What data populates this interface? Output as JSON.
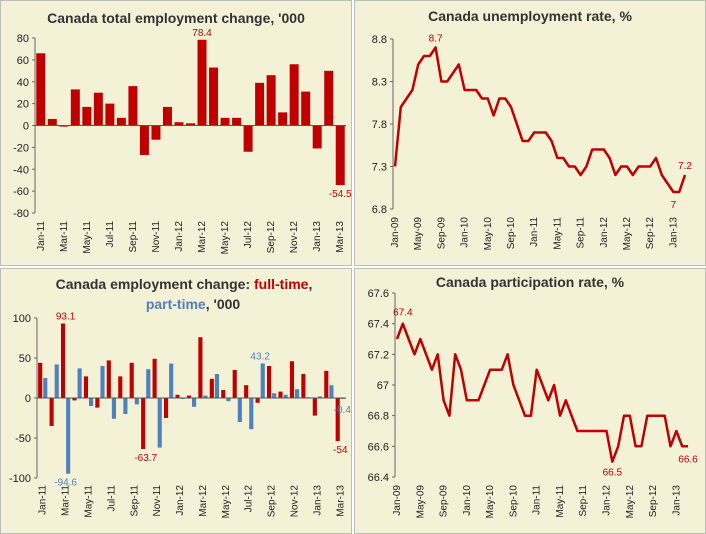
{
  "colors": {
    "red": "#c00000",
    "blue": "#4f81bd",
    "panel_bg": "#f3f1d6",
    "line_red": "#c00000"
  },
  "chart_data": [
    {
      "type": "bar",
      "title": "Canada total employment change, '000",
      "ylim": [
        -80,
        80
      ],
      "yticks": [
        80,
        60,
        40,
        20,
        0,
        -20,
        -40,
        -60,
        -80
      ],
      "x_tick_labels": [
        "Jan-11",
        "Mar-11",
        "May-11",
        "Jul-11",
        "Sep-11",
        "Nov-11",
        "Jan-12",
        "Mar-12",
        "May-12",
        "Jul-12",
        "Sep-12",
        "Nov-12",
        "Jan-13",
        "Mar-13"
      ],
      "categories": [
        "Jan-11",
        "Feb-11",
        "Mar-11",
        "Apr-11",
        "May-11",
        "Jun-11",
        "Jul-11",
        "Aug-11",
        "Sep-11",
        "Oct-11",
        "Nov-11",
        "Dec-11",
        "Jan-12",
        "Feb-12",
        "Mar-12",
        "Apr-12",
        "May-12",
        "Jun-12",
        "Jul-12",
        "Aug-12",
        "Sep-12",
        "Oct-12",
        "Nov-12",
        "Dec-12",
        "Jan-13",
        "Feb-13",
        "Mar-13"
      ],
      "values": [
        66,
        6,
        -1,
        33,
        17,
        30,
        20,
        7,
        36,
        -27,
        -13,
        17,
        3,
        2,
        78.4,
        53,
        7,
        7,
        -24,
        39,
        46,
        12,
        56,
        31,
        -21,
        50,
        -54.5
      ],
      "data_labels": [
        {
          "index": 14,
          "text": "78.4"
        },
        {
          "index": 26,
          "text": "-54.5"
        }
      ]
    },
    {
      "type": "line",
      "title": "Canada unemployment rate, %",
      "ylim": [
        6.8,
        8.8
      ],
      "yticks": [
        8.8,
        8.3,
        7.8,
        7.3,
        6.8
      ],
      "x_tick_labels": [
        "Jan-09",
        "May-09",
        "Sep-09",
        "Jan-10",
        "May-10",
        "Sep-10",
        "Jan-11",
        "May-11",
        "Sep-11",
        "Jan-12",
        "May-12",
        "Sep-12",
        "Jan-13"
      ],
      "values": [
        7.3,
        8.0,
        8.1,
        8.2,
        8.5,
        8.6,
        8.6,
        8.7,
        8.3,
        8.3,
        8.4,
        8.5,
        8.2,
        8.2,
        8.2,
        8.1,
        8.1,
        7.9,
        8.1,
        8.1,
        8.0,
        7.8,
        7.6,
        7.6,
        7.7,
        7.7,
        7.7,
        7.6,
        7.4,
        7.4,
        7.3,
        7.3,
        7.2,
        7.3,
        7.5,
        7.5,
        7.5,
        7.4,
        7.2,
        7.3,
        7.3,
        7.2,
        7.3,
        7.3,
        7.3,
        7.4,
        7.2,
        7.1,
        7.0,
        7.0,
        7.2
      ],
      "data_labels": [
        {
          "index": 7,
          "text": "8.7"
        },
        {
          "index": 48,
          "text": "7"
        },
        {
          "index": 50,
          "text": "7.2"
        }
      ]
    },
    {
      "type": "bar",
      "title_parts": [
        "Canada employment change: ",
        "full-time",
        ",",
        "part-time",
        ", '000"
      ],
      "ylim": [
        -100,
        100
      ],
      "yticks": [
        100,
        50,
        0,
        -50,
        -100
      ],
      "x_tick_labels": [
        "Jan-11",
        "Mar-11",
        "May-11",
        "Jul-11",
        "Sep-11",
        "Nov-11",
        "Jan-12",
        "Mar-12",
        "May-12",
        "Jul-12",
        "Sep-12",
        "Nov-12",
        "Jan-13",
        "Mar-13"
      ],
      "series": [
        {
          "name": "full-time",
          "values": [
            44,
            -35,
            93.1,
            -3,
            27,
            -12,
            47,
            27,
            44,
            -63.7,
            49,
            -25,
            4,
            3,
            76,
            24,
            10,
            35,
            16,
            -6,
            40,
            8,
            46,
            30,
            -22,
            34,
            -54
          ]
        },
        {
          "name": "part-time",
          "values": [
            25,
            42,
            -94.6,
            37,
            -10,
            40,
            -26,
            -20,
            -8,
            36,
            -62,
            43,
            -1,
            -11,
            3,
            30,
            -4,
            -30,
            -39,
            43.2,
            6,
            4,
            11,
            1,
            2,
            16,
            -0.4
          ]
        }
      ],
      "data_labels": [
        {
          "series": 0,
          "index": 2,
          "text": "93.1"
        },
        {
          "series": 1,
          "index": 2,
          "text": "-94.6"
        },
        {
          "series": 0,
          "index": 9,
          "text": "-63.7"
        },
        {
          "series": 1,
          "index": 19,
          "text": "43.2"
        },
        {
          "series": 1,
          "index": 26,
          "text": "-0.4"
        },
        {
          "series": 0,
          "index": 26,
          "text": "-54"
        }
      ]
    },
    {
      "type": "line",
      "title": "Canada participation rate, %",
      "ylim": [
        66.4,
        67.6
      ],
      "yticks": [
        67.6,
        67.4,
        67.2,
        67,
        66.8,
        66.6,
        66.4
      ],
      "y_tick_labels": [
        "67.6",
        "67.4",
        "67.2",
        "67",
        "66.8",
        "66.6",
        "66.4"
      ],
      "x_tick_labels": [
        "Jan-09",
        "May-09",
        "Sep-09",
        "Jan-10",
        "May-10",
        "Sep-10",
        "Jan-11",
        "May-11",
        "Sep-11",
        "Jan-12",
        "May-12",
        "Sep-12",
        "Jan-13"
      ],
      "values": [
        67.3,
        67.4,
        67.3,
        67.2,
        67.3,
        67.2,
        67.1,
        67.2,
        66.9,
        66.8,
        67.2,
        67.1,
        66.9,
        66.9,
        66.9,
        67.0,
        67.1,
        67.1,
        67.1,
        67.2,
        67.0,
        66.9,
        66.8,
        66.8,
        67.1,
        67.0,
        66.9,
        67.0,
        66.8,
        66.9,
        66.8,
        66.7,
        66.7,
        66.7,
        66.7,
        66.7,
        66.7,
        66.5,
        66.6,
        66.8,
        66.8,
        66.6,
        66.6,
        66.8,
        66.8,
        66.8,
        66.8,
        66.6,
        66.7,
        66.6,
        66.6
      ],
      "data_labels": [
        {
          "index": 1,
          "text": "67.4"
        },
        {
          "index": 37,
          "text": "66.5"
        },
        {
          "index": 50,
          "text": "66.6"
        }
      ]
    }
  ]
}
